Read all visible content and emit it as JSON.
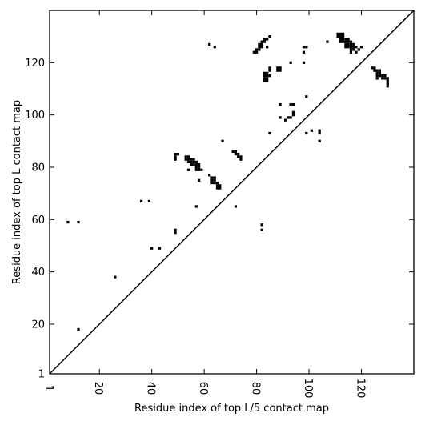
{
  "chart_data": {
    "type": "scatter",
    "title": "",
    "xlabel": "Residue index of top L/5 contact map",
    "ylabel": "Residue index of top L contact map",
    "xlim": [
      1,
      140
    ],
    "ylim": [
      1,
      140
    ],
    "xticks": [
      1,
      20,
      40,
      60,
      80,
      100,
      120
    ],
    "yticks": [
      1,
      20,
      40,
      60,
      80,
      100,
      120
    ],
    "xtick_labels": [
      "1",
      "20",
      "40",
      "60",
      "80",
      "100",
      "120"
    ],
    "ytick_labels": [
      "1",
      "20",
      "40",
      "60",
      "80",
      "100",
      "120"
    ],
    "grid": false,
    "legend": "none",
    "diagonal": true,
    "point_color": "#000000",
    "series": [
      {
        "points": [
          [
            8,
            59
          ],
          [
            12,
            59
          ],
          [
            12,
            18
          ],
          [
            26,
            38
          ],
          [
            36,
            67
          ],
          [
            39,
            67
          ],
          [
            40,
            49
          ],
          [
            43,
            49
          ],
          [
            49,
            85
          ],
          [
            49,
            84
          ],
          [
            50,
            85
          ],
          [
            49,
            83
          ],
          [
            49,
            56
          ],
          [
            49,
            55
          ],
          [
            53,
            84
          ],
          [
            54,
            84
          ],
          [
            53,
            83
          ],
          [
            54,
            83
          ],
          [
            55,
            83
          ],
          [
            56,
            83
          ],
          [
            55,
            82
          ],
          [
            56,
            82
          ],
          [
            54,
            82
          ],
          [
            57,
            82
          ],
          [
            55,
            81
          ],
          [
            56,
            81
          ],
          [
            57,
            81
          ],
          [
            58,
            81
          ],
          [
            57,
            80
          ],
          [
            58,
            80
          ],
          [
            57,
            79
          ],
          [
            58,
            79
          ],
          [
            59,
            79
          ],
          [
            54,
            79
          ],
          [
            58,
            75
          ],
          [
            57,
            65
          ],
          [
            62,
            77
          ],
          [
            63,
            76
          ],
          [
            64,
            76
          ],
          [
            63,
            75
          ],
          [
            64,
            75
          ],
          [
            63,
            74
          ],
          [
            64,
            74
          ],
          [
            65,
            74
          ],
          [
            65,
            73
          ],
          [
            66,
            73
          ],
          [
            65,
            72
          ],
          [
            66,
            72
          ],
          [
            67,
            90
          ],
          [
            62,
            127
          ],
          [
            64,
            126
          ],
          [
            72,
            65
          ],
          [
            71,
            86
          ],
          [
            72,
            86
          ],
          [
            72,
            85
          ],
          [
            73,
            85
          ],
          [
            73,
            84
          ],
          [
            74,
            84
          ],
          [
            74,
            83
          ],
          [
            79,
            124
          ],
          [
            80,
            124
          ],
          [
            80,
            125
          ],
          [
            81,
            125
          ],
          [
            81,
            126
          ],
          [
            82,
            126
          ],
          [
            81,
            127
          ],
          [
            82,
            127
          ],
          [
            82,
            128
          ],
          [
            83,
            128
          ],
          [
            83,
            129
          ],
          [
            84,
            129
          ],
          [
            85,
            130
          ],
          [
            84,
            126
          ],
          [
            83,
            116
          ],
          [
            84,
            116
          ],
          [
            83,
            115
          ],
          [
            84,
            115
          ],
          [
            85,
            115
          ],
          [
            83,
            114
          ],
          [
            84,
            114
          ],
          [
            83,
            113
          ],
          [
            84,
            113
          ],
          [
            85,
            117
          ],
          [
            85,
            118
          ],
          [
            88,
            118
          ],
          [
            89,
            118
          ],
          [
            88,
            117
          ],
          [
            89,
            117
          ],
          [
            82,
            58
          ],
          [
            82,
            56
          ],
          [
            85,
            93
          ],
          [
            89,
            104
          ],
          [
            89,
            99
          ],
          [
            93,
            104
          ],
          [
            94,
            104
          ],
          [
            91,
            98
          ],
          [
            92,
            99
          ],
          [
            93,
            99
          ],
          [
            94,
            100
          ],
          [
            94,
            101
          ],
          [
            93,
            120
          ],
          [
            98,
            126
          ],
          [
            99,
            126
          ],
          [
            98,
            124
          ],
          [
            98,
            120
          ],
          [
            99,
            107
          ],
          [
            99,
            93
          ],
          [
            101,
            94
          ],
          [
            104,
            94
          ],
          [
            104,
            93
          ],
          [
            104,
            90
          ],
          [
            107,
            128
          ],
          [
            111,
            131
          ],
          [
            112,
            131
          ],
          [
            113,
            131
          ],
          [
            111,
            130
          ],
          [
            112,
            130
          ],
          [
            113,
            130
          ],
          [
            112,
            129
          ],
          [
            113,
            129
          ],
          [
            114,
            129
          ],
          [
            115,
            129
          ],
          [
            112,
            128
          ],
          [
            113,
            128
          ],
          [
            114,
            128
          ],
          [
            115,
            128
          ],
          [
            116,
            128
          ],
          [
            114,
            127
          ],
          [
            115,
            127
          ],
          [
            116,
            127
          ],
          [
            117,
            127
          ],
          [
            114,
            126
          ],
          [
            115,
            126
          ],
          [
            116,
            126
          ],
          [
            117,
            126
          ],
          [
            118,
            126
          ],
          [
            116,
            125
          ],
          [
            117,
            125
          ],
          [
            119,
            125
          ],
          [
            120,
            126
          ],
          [
            116,
            124
          ],
          [
            118,
            124
          ],
          [
            124,
            118
          ],
          [
            125,
            118
          ],
          [
            125,
            117
          ],
          [
            126,
            117
          ],
          [
            127,
            117
          ],
          [
            126,
            116
          ],
          [
            127,
            116
          ],
          [
            126,
            115
          ],
          [
            127,
            115
          ],
          [
            128,
            115
          ],
          [
            129,
            115
          ],
          [
            126,
            114
          ],
          [
            128,
            114
          ],
          [
            129,
            114
          ],
          [
            130,
            114
          ],
          [
            130,
            113
          ],
          [
            130,
            112
          ],
          [
            130,
            111
          ]
        ]
      }
    ]
  }
}
